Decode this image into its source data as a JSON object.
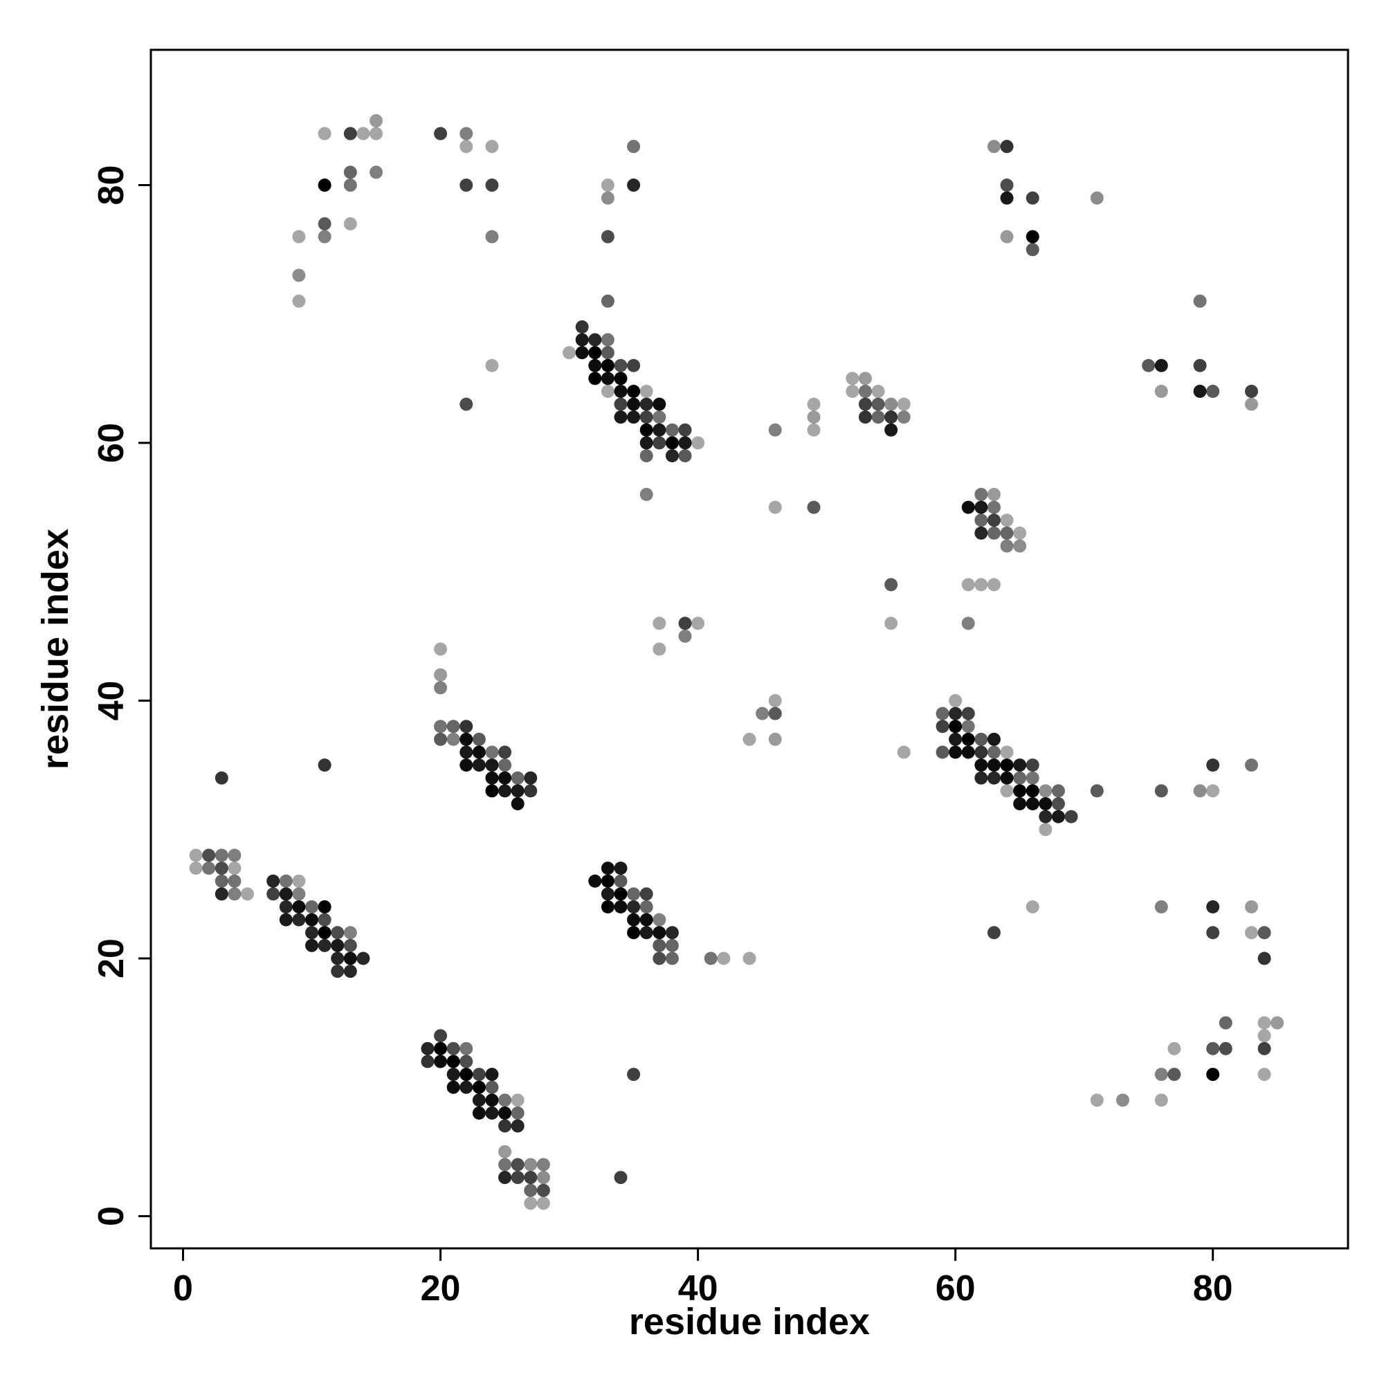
{
  "chart_data": {
    "type": "scatter",
    "title": "",
    "xlabel": "residue index",
    "ylabel": "residue index",
    "xlim": [
      -2.5,
      90.5
    ],
    "ylim": [
      -2.5,
      90.5
    ],
    "x_ticks": [
      0,
      20,
      40,
      60,
      80
    ],
    "y_ticks": [
      0,
      20,
      40,
      60,
      80
    ],
    "x_tick_labels": [
      "0",
      "20",
      "40",
      "60",
      "80"
    ],
    "y_tick_labels": [
      "0",
      "20",
      "40",
      "60",
      "80"
    ],
    "grid": false,
    "legend": "none",
    "marker_color": "#000000",
    "points": [
      [
        1,
        28,
        0.35
      ],
      [
        1,
        27,
        0.35
      ],
      [
        2,
        28,
        0.7
      ],
      [
        2,
        27,
        0.55
      ],
      [
        3,
        28,
        0.55
      ],
      [
        3,
        27,
        0.7
      ],
      [
        3,
        26,
        0.6
      ],
      [
        3,
        25,
        0.85
      ],
      [
        4,
        28,
        0.5
      ],
      [
        4,
        27,
        0.35
      ],
      [
        4,
        26,
        0.55
      ],
      [
        4,
        25,
        0.5
      ],
      [
        5,
        25,
        0.35
      ],
      [
        3,
        34,
        0.8
      ],
      [
        7,
        26,
        0.85
      ],
      [
        7,
        25,
        0.75
      ],
      [
        8,
        26,
        0.55
      ],
      [
        8,
        25,
        0.9
      ],
      [
        8,
        24,
        0.85
      ],
      [
        8,
        23,
        0.9
      ],
      [
        9,
        26,
        0.35
      ],
      [
        9,
        25,
        0.5
      ],
      [
        9,
        24,
        0.95
      ],
      [
        9,
        23,
        0.85
      ],
      [
        10,
        24,
        0.6
      ],
      [
        10,
        23,
        0.95
      ],
      [
        10,
        22,
        0.85
      ],
      [
        10,
        21,
        0.9
      ],
      [
        11,
        24,
        1.0
      ],
      [
        11,
        23,
        0.7
      ],
      [
        11,
        22,
        1.0
      ],
      [
        11,
        21,
        0.85
      ],
      [
        12,
        22,
        0.7
      ],
      [
        12,
        21,
        0.9
      ],
      [
        12,
        20,
        0.85
      ],
      [
        12,
        19,
        0.8
      ],
      [
        13,
        22,
        0.5
      ],
      [
        13,
        21,
        0.7
      ],
      [
        13,
        20,
        0.95
      ],
      [
        13,
        19,
        0.85
      ],
      [
        14,
        20,
        0.85
      ],
      [
        11,
        35,
        0.8
      ],
      [
        19,
        13,
        0.85
      ],
      [
        19,
        12,
        0.8
      ],
      [
        20,
        14,
        0.75
      ],
      [
        20,
        13,
        1.0
      ],
      [
        20,
        12,
        0.95
      ],
      [
        21,
        13,
        0.7
      ],
      [
        21,
        12,
        1.0
      ],
      [
        21,
        11,
        0.9
      ],
      [
        21,
        10,
        0.95
      ],
      [
        22,
        13,
        0.55
      ],
      [
        22,
        12,
        0.7
      ],
      [
        22,
        11,
        1.0
      ],
      [
        22,
        10,
        0.9
      ],
      [
        23,
        11,
        0.75
      ],
      [
        23,
        10,
        1.0
      ],
      [
        23,
        9,
        0.9
      ],
      [
        23,
        8,
        0.95
      ],
      [
        24,
        11,
        0.9
      ],
      [
        24,
        10,
        0.65
      ],
      [
        24,
        9,
        0.95
      ],
      [
        24,
        8,
        0.9
      ],
      [
        25,
        9,
        0.55
      ],
      [
        25,
        8,
        0.95
      ],
      [
        25,
        7,
        0.8
      ],
      [
        26,
        9,
        0.35
      ],
      [
        26,
        8,
        0.6
      ],
      [
        26,
        7,
        0.85
      ],
      [
        25,
        5,
        0.4
      ],
      [
        25,
        4,
        0.55
      ],
      [
        25,
        3,
        0.85
      ],
      [
        26,
        4,
        0.7
      ],
      [
        26,
        3,
        0.75
      ],
      [
        27,
        4,
        0.45
      ],
      [
        27,
        3,
        0.75
      ],
      [
        27,
        2,
        0.6
      ],
      [
        27,
        1,
        0.35
      ],
      [
        28,
        4,
        0.5
      ],
      [
        28,
        3,
        0.45
      ],
      [
        28,
        2,
        0.7
      ],
      [
        28,
        1,
        0.35
      ],
      [
        34,
        3,
        0.75
      ],
      [
        20,
        44,
        0.35
      ],
      [
        20,
        42,
        0.4
      ],
      [
        20,
        41,
        0.5
      ],
      [
        20,
        38,
        0.55
      ],
      [
        20,
        37,
        0.65
      ],
      [
        21,
        38,
        0.6
      ],
      [
        21,
        37,
        0.5
      ],
      [
        22,
        38,
        0.8
      ],
      [
        22,
        37,
        0.95
      ],
      [
        22,
        36,
        0.9
      ],
      [
        22,
        35,
        0.95
      ],
      [
        23,
        37,
        0.65
      ],
      [
        23,
        36,
        0.95
      ],
      [
        23,
        35,
        0.9
      ],
      [
        24,
        36,
        0.55
      ],
      [
        24,
        35,
        0.9
      ],
      [
        24,
        34,
        0.95
      ],
      [
        24,
        33,
        1.0
      ],
      [
        25,
        36,
        0.75
      ],
      [
        25,
        35,
        0.6
      ],
      [
        25,
        34,
        0.95
      ],
      [
        25,
        33,
        0.9
      ],
      [
        26,
        34,
        0.6
      ],
      [
        26,
        33,
        0.9
      ],
      [
        26,
        32,
        0.95
      ],
      [
        27,
        34,
        0.85
      ],
      [
        27,
        33,
        0.8
      ],
      [
        32,
        26,
        0.95
      ],
      [
        33,
        27,
        0.95
      ],
      [
        33,
        26,
        1.0
      ],
      [
        33,
        25,
        0.9
      ],
      [
        33,
        24,
        1.0
      ],
      [
        34,
        27,
        0.9
      ],
      [
        34,
        26,
        0.65
      ],
      [
        34,
        25,
        1.0
      ],
      [
        34,
        24,
        0.95
      ],
      [
        35,
        25,
        0.6
      ],
      [
        35,
        24,
        0.85
      ],
      [
        35,
        23,
        0.95
      ],
      [
        35,
        22,
        1.0
      ],
      [
        36,
        25,
        0.75
      ],
      [
        36,
        24,
        0.6
      ],
      [
        36,
        23,
        0.95
      ],
      [
        36,
        22,
        0.9
      ],
      [
        37,
        23,
        0.5
      ],
      [
        37,
        22,
        0.95
      ],
      [
        37,
        21,
        0.65
      ],
      [
        37,
        20,
        0.7
      ],
      [
        38,
        22,
        0.85
      ],
      [
        38,
        21,
        0.6
      ],
      [
        38,
        20,
        0.6
      ],
      [
        41,
        20,
        0.55
      ],
      [
        42,
        20,
        0.35
      ],
      [
        44,
        20,
        0.35
      ],
      [
        35,
        11,
        0.75
      ],
      [
        30,
        67,
        0.35
      ],
      [
        31,
        69,
        0.8
      ],
      [
        31,
        68,
        0.9
      ],
      [
        31,
        67,
        0.95
      ],
      [
        32,
        68,
        0.85
      ],
      [
        32,
        67,
        1.0
      ],
      [
        32,
        66,
        0.95
      ],
      [
        32,
        65,
        1.0
      ],
      [
        33,
        68,
        0.55
      ],
      [
        33,
        67,
        0.65
      ],
      [
        33,
        66,
        1.0
      ],
      [
        33,
        65,
        0.95
      ],
      [
        33,
        64,
        0.35
      ],
      [
        34,
        66,
        0.7
      ],
      [
        34,
        65,
        1.0
      ],
      [
        34,
        64,
        0.95
      ],
      [
        34,
        63,
        0.75
      ],
      [
        34,
        62,
        0.9
      ],
      [
        35,
        66,
        0.75
      ],
      [
        35,
        64,
        1.0
      ],
      [
        35,
        63,
        0.95
      ],
      [
        35,
        62,
        0.9
      ],
      [
        36,
        64,
        0.35
      ],
      [
        36,
        63,
        0.85
      ],
      [
        36,
        62,
        0.75
      ],
      [
        36,
        61,
        1.0
      ],
      [
        36,
        60,
        0.9
      ],
      [
        36,
        59,
        0.6
      ],
      [
        37,
        63,
        0.95
      ],
      [
        37,
        62,
        0.55
      ],
      [
        37,
        61,
        0.9
      ],
      [
        37,
        60,
        0.75
      ],
      [
        38,
        61,
        0.6
      ],
      [
        38,
        60,
        1.0
      ],
      [
        38,
        59,
        0.85
      ],
      [
        39,
        61,
        0.75
      ],
      [
        39,
        60,
        0.9
      ],
      [
        39,
        59,
        0.65
      ],
      [
        40,
        60,
        0.35
      ],
      [
        36,
        56,
        0.5
      ],
      [
        9,
        76,
        0.35
      ],
      [
        9,
        73,
        0.45
      ],
      [
        9,
        71,
        0.35
      ],
      [
        11,
        84,
        0.35
      ],
      [
        11,
        80,
        1.0
      ],
      [
        11,
        77,
        0.65
      ],
      [
        11,
        76,
        0.5
      ],
      [
        13,
        84,
        0.75
      ],
      [
        13,
        81,
        0.6
      ],
      [
        13,
        80,
        0.55
      ],
      [
        13,
        77,
        0.35
      ],
      [
        14,
        84,
        0.35
      ],
      [
        15,
        85,
        0.4
      ],
      [
        15,
        84,
        0.35
      ],
      [
        15,
        81,
        0.5
      ],
      [
        20,
        84,
        0.75
      ],
      [
        22,
        84,
        0.5
      ],
      [
        22,
        83,
        0.35
      ],
      [
        22,
        80,
        0.75
      ],
      [
        24,
        83,
        0.35
      ],
      [
        24,
        80,
        0.75
      ],
      [
        24,
        76,
        0.5
      ],
      [
        24,
        66,
        0.35
      ],
      [
        22,
        63,
        0.7
      ],
      [
        33,
        80,
        0.35
      ],
      [
        33,
        79,
        0.45
      ],
      [
        33,
        76,
        0.7
      ],
      [
        33,
        71,
        0.6
      ],
      [
        35,
        83,
        0.55
      ],
      [
        35,
        80,
        0.85
      ],
      [
        37,
        46,
        0.35
      ],
      [
        37,
        44,
        0.35
      ],
      [
        39,
        46,
        0.75
      ],
      [
        39,
        45,
        0.5
      ],
      [
        40,
        46,
        0.35
      ],
      [
        44,
        37,
        0.35
      ],
      [
        45,
        39,
        0.5
      ],
      [
        46,
        40,
        0.35
      ],
      [
        46,
        39,
        0.65
      ],
      [
        46,
        37,
        0.4
      ],
      [
        46,
        61,
        0.5
      ],
      [
        46,
        55,
        0.35
      ],
      [
        49,
        63,
        0.35
      ],
      [
        49,
        62,
        0.4
      ],
      [
        49,
        61,
        0.35
      ],
      [
        49,
        55,
        0.65
      ],
      [
        52,
        65,
        0.35
      ],
      [
        52,
        64,
        0.35
      ],
      [
        53,
        65,
        0.4
      ],
      [
        53,
        64,
        0.55
      ],
      [
        53,
        63,
        0.75
      ],
      [
        53,
        62,
        0.8
      ],
      [
        54,
        64,
        0.35
      ],
      [
        54,
        63,
        0.65
      ],
      [
        54,
        62,
        0.6
      ],
      [
        55,
        63,
        0.45
      ],
      [
        55,
        62,
        0.8
      ],
      [
        55,
        61,
        0.9
      ],
      [
        56,
        63,
        0.35
      ],
      [
        56,
        62,
        0.5
      ],
      [
        55,
        49,
        0.65
      ],
      [
        55,
        46,
        0.35
      ],
      [
        56,
        36,
        0.35
      ],
      [
        61,
        55,
        0.95
      ],
      [
        62,
        56,
        0.55
      ],
      [
        62,
        55,
        0.9
      ],
      [
        62,
        54,
        0.6
      ],
      [
        62,
        53,
        0.85
      ],
      [
        63,
        56,
        0.4
      ],
      [
        63,
        55,
        0.55
      ],
      [
        63,
        54,
        0.75
      ],
      [
        63,
        53,
        0.6
      ],
      [
        64,
        54,
        0.35
      ],
      [
        64,
        53,
        0.6
      ],
      [
        64,
        52,
        0.5
      ],
      [
        65,
        53,
        0.35
      ],
      [
        65,
        52,
        0.45
      ],
      [
        61,
        49,
        0.35
      ],
      [
        62,
        49,
        0.35
      ],
      [
        63,
        49,
        0.35
      ],
      [
        61,
        46,
        0.5
      ],
      [
        59,
        39,
        0.6
      ],
      [
        59,
        38,
        0.75
      ],
      [
        59,
        36,
        0.65
      ],
      [
        60,
        40,
        0.35
      ],
      [
        60,
        39,
        0.85
      ],
      [
        60,
        38,
        1.0
      ],
      [
        60,
        37,
        0.9
      ],
      [
        60,
        36,
        0.95
      ],
      [
        61,
        39,
        0.75
      ],
      [
        61,
        38,
        0.55
      ],
      [
        61,
        37,
        1.0
      ],
      [
        61,
        36,
        0.95
      ],
      [
        62,
        37,
        0.65
      ],
      [
        62,
        36,
        0.8
      ],
      [
        62,
        35,
        0.95
      ],
      [
        62,
        34,
        0.85
      ],
      [
        63,
        37,
        0.9
      ],
      [
        63,
        36,
        0.6
      ],
      [
        63,
        35,
        0.95
      ],
      [
        63,
        34,
        0.85
      ],
      [
        64,
        36,
        0.35
      ],
      [
        64,
        35,
        1.0
      ],
      [
        64,
        34,
        0.95
      ],
      [
        64,
        33,
        0.35
      ],
      [
        65,
        35,
        0.9
      ],
      [
        65,
        34,
        0.6
      ],
      [
        65,
        33,
        1.0
      ],
      [
        65,
        32,
        0.95
      ],
      [
        66,
        35,
        0.75
      ],
      [
        66,
        34,
        0.55
      ],
      [
        66,
        33,
        1.0
      ],
      [
        66,
        32,
        0.95
      ],
      [
        67,
        33,
        0.45
      ],
      [
        67,
        32,
        0.95
      ],
      [
        67,
        31,
        0.85
      ],
      [
        67,
        30,
        0.35
      ],
      [
        68,
        33,
        0.6
      ],
      [
        68,
        32,
        0.7
      ],
      [
        68,
        31,
        0.9
      ],
      [
        69,
        31,
        0.75
      ],
      [
        71,
        33,
        0.65
      ],
      [
        76,
        33,
        0.65
      ],
      [
        79,
        33,
        0.45
      ],
      [
        80,
        35,
        0.8
      ],
      [
        80,
        33,
        0.35
      ],
      [
        83,
        35,
        0.55
      ],
      [
        66,
        24,
        0.35
      ],
      [
        63,
        22,
        0.75
      ],
      [
        76,
        24,
        0.5
      ],
      [
        80,
        24,
        0.85
      ],
      [
        80,
        22,
        0.75
      ],
      [
        83,
        24,
        0.4
      ],
      [
        83,
        22,
        0.35
      ],
      [
        84,
        22,
        0.65
      ],
      [
        84,
        20,
        0.8
      ],
      [
        71,
        9,
        0.35
      ],
      [
        73,
        9,
        0.45
      ],
      [
        76,
        11,
        0.5
      ],
      [
        76,
        9,
        0.35
      ],
      [
        77,
        13,
        0.35
      ],
      [
        77,
        11,
        0.65
      ],
      [
        80,
        13,
        0.65
      ],
      [
        80,
        11,
        1.0
      ],
      [
        81,
        15,
        0.6
      ],
      [
        81,
        13,
        0.7
      ],
      [
        84,
        15,
        0.35
      ],
      [
        84,
        14,
        0.35
      ],
      [
        84,
        13,
        0.75
      ],
      [
        84,
        11,
        0.35
      ],
      [
        85,
        15,
        0.4
      ],
      [
        63,
        83,
        0.45
      ],
      [
        64,
        83,
        0.8
      ],
      [
        64,
        80,
        0.7
      ],
      [
        64,
        79,
        0.9
      ],
      [
        64,
        76,
        0.4
      ],
      [
        66,
        79,
        0.75
      ],
      [
        66,
        76,
        1.0
      ],
      [
        66,
        75,
        0.65
      ],
      [
        71,
        79,
        0.45
      ],
      [
        75,
        66,
        0.65
      ],
      [
        76,
        66,
        0.9
      ],
      [
        76,
        64,
        0.4
      ],
      [
        79,
        71,
        0.55
      ],
      [
        79,
        66,
        0.75
      ],
      [
        79,
        64,
        0.9
      ],
      [
        80,
        64,
        0.65
      ],
      [
        83,
        64,
        0.75
      ],
      [
        83,
        63,
        0.4
      ]
    ]
  }
}
